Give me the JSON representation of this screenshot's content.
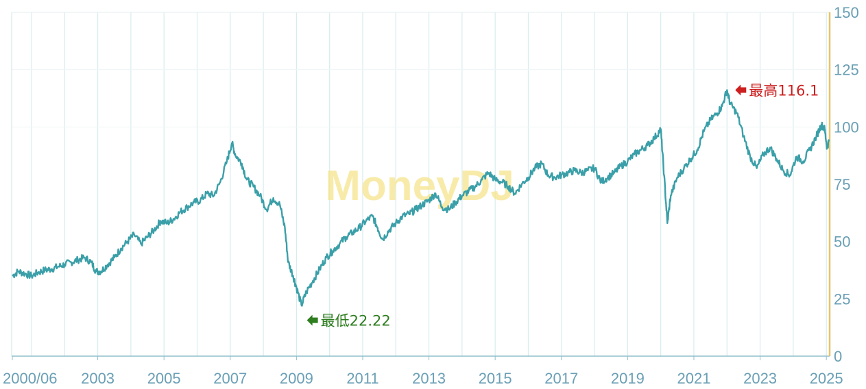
{
  "chart_data": {
    "type": "line",
    "title": "",
    "xlabel": "",
    "ylabel": "",
    "ylim": [
      0,
      150
    ],
    "y_ticks": [
      0,
      25,
      50,
      75,
      100,
      125,
      150
    ],
    "x_range": [
      2000.4,
      2025.1
    ],
    "x_tick_labels": [
      {
        "year": 2000.42,
        "label": "2000/06"
      },
      {
        "year": 2003,
        "label": "2003"
      },
      {
        "year": 2005,
        "label": "2005"
      },
      {
        "year": 2007,
        "label": "2007"
      },
      {
        "year": 2009,
        "label": "2009"
      },
      {
        "year": 2011,
        "label": "2011"
      },
      {
        "year": 2013,
        "label": "2013"
      },
      {
        "year": 2015,
        "label": "2015"
      },
      {
        "year": 2017,
        "label": "2017"
      },
      {
        "year": 2019,
        "label": "2019"
      },
      {
        "year": 2021,
        "label": "2021"
      },
      {
        "year": 2023,
        "label": "2023"
      },
      {
        "year": 2025,
        "label": "2025"
      }
    ],
    "grid": "vertical",
    "line_color": "#3a9fa8",
    "grid_color": "#d7ecef",
    "axis_right_color": "#e8c46a",
    "series": [
      {
        "values": [
          [
            2000.42,
            35
          ],
          [
            2000.6,
            37
          ],
          [
            2000.8,
            36
          ],
          [
            2001.0,
            35
          ],
          [
            2001.2,
            36.5
          ],
          [
            2001.4,
            37.5
          ],
          [
            2001.6,
            38
          ],
          [
            2001.8,
            39
          ],
          [
            2002.0,
            40
          ],
          [
            2002.2,
            41
          ],
          [
            2002.4,
            42
          ],
          [
            2002.6,
            43
          ],
          [
            2002.8,
            41
          ],
          [
            2002.95,
            37
          ],
          [
            2003.1,
            37
          ],
          [
            2003.3,
            40
          ],
          [
            2003.5,
            43
          ],
          [
            2003.7,
            47
          ],
          [
            2003.9,
            50
          ],
          [
            2004.1,
            53
          ],
          [
            2004.3,
            49
          ],
          [
            2004.5,
            52
          ],
          [
            2004.7,
            55
          ],
          [
            2004.9,
            59
          ],
          [
            2005.1,
            58
          ],
          [
            2005.3,
            60
          ],
          [
            2005.5,
            63
          ],
          [
            2005.7,
            65
          ],
          [
            2005.9,
            67
          ],
          [
            2006.1,
            68
          ],
          [
            2006.3,
            71
          ],
          [
            2006.5,
            70
          ],
          [
            2006.7,
            76
          ],
          [
            2006.9,
            85
          ],
          [
            2007.05,
            93
          ],
          [
            2007.15,
            88
          ],
          [
            2007.35,
            84
          ],
          [
            2007.5,
            77
          ],
          [
            2007.7,
            74
          ],
          [
            2007.9,
            70
          ],
          [
            2008.1,
            64
          ],
          [
            2008.3,
            69
          ],
          [
            2008.5,
            66
          ],
          [
            2008.65,
            56
          ],
          [
            2008.75,
            41
          ],
          [
            2008.9,
            35
          ],
          [
            2009.0,
            30
          ],
          [
            2009.15,
            22.22
          ],
          [
            2009.3,
            28
          ],
          [
            2009.5,
            33
          ],
          [
            2009.7,
            38
          ],
          [
            2009.9,
            43
          ],
          [
            2010.1,
            46
          ],
          [
            2010.3,
            49
          ],
          [
            2010.5,
            52
          ],
          [
            2010.7,
            54
          ],
          [
            2010.9,
            56
          ],
          [
            2011.1,
            59
          ],
          [
            2011.3,
            61
          ],
          [
            2011.45,
            56
          ],
          [
            2011.6,
            51
          ],
          [
            2011.8,
            55
          ],
          [
            2012.0,
            58
          ],
          [
            2012.2,
            61
          ],
          [
            2012.4,
            62
          ],
          [
            2012.6,
            64
          ],
          [
            2012.8,
            66
          ],
          [
            2013.0,
            68
          ],
          [
            2013.2,
            71
          ],
          [
            2013.4,
            65
          ],
          [
            2013.6,
            64
          ],
          [
            2013.8,
            67
          ],
          [
            2014.0,
            70
          ],
          [
            2014.2,
            72
          ],
          [
            2014.4,
            74
          ],
          [
            2014.6,
            77
          ],
          [
            2014.8,
            80
          ],
          [
            2015.0,
            77
          ],
          [
            2015.2,
            76
          ],
          [
            2015.4,
            74
          ],
          [
            2015.6,
            71
          ],
          [
            2015.8,
            75
          ],
          [
            2016.0,
            78
          ],
          [
            2016.2,
            82
          ],
          [
            2016.4,
            84
          ],
          [
            2016.6,
            79
          ],
          [
            2016.8,
            78
          ],
          [
            2017.0,
            79
          ],
          [
            2017.2,
            80
          ],
          [
            2017.4,
            81
          ],
          [
            2017.6,
            80
          ],
          [
            2017.8,
            81
          ],
          [
            2018.0,
            82
          ],
          [
            2018.2,
            76
          ],
          [
            2018.4,
            78
          ],
          [
            2018.6,
            80
          ],
          [
            2018.8,
            83
          ],
          [
            2019.0,
            85
          ],
          [
            2019.2,
            88
          ],
          [
            2019.4,
            90
          ],
          [
            2019.6,
            92
          ],
          [
            2019.8,
            95
          ],
          [
            2020.0,
            99
          ],
          [
            2020.1,
            79
          ],
          [
            2020.2,
            58
          ],
          [
            2020.3,
            70
          ],
          [
            2020.5,
            78
          ],
          [
            2020.7,
            82
          ],
          [
            2020.9,
            86
          ],
          [
            2021.1,
            90
          ],
          [
            2021.3,
            98
          ],
          [
            2021.5,
            103
          ],
          [
            2021.7,
            106
          ],
          [
            2021.85,
            109
          ],
          [
            2022.0,
            116.1
          ],
          [
            2022.1,
            110
          ],
          [
            2022.3,
            106
          ],
          [
            2022.5,
            96
          ],
          [
            2022.7,
            87
          ],
          [
            2022.9,
            82
          ],
          [
            2023.1,
            88
          ],
          [
            2023.3,
            91
          ],
          [
            2023.5,
            86
          ],
          [
            2023.7,
            81
          ],
          [
            2023.9,
            79
          ],
          [
            2024.1,
            87
          ],
          [
            2024.3,
            85
          ],
          [
            2024.5,
            90
          ],
          [
            2024.7,
            96
          ],
          [
            2024.85,
            101
          ],
          [
            2024.95,
            99
          ],
          [
            2025.02,
            91
          ],
          [
            2025.08,
            94
          ]
        ]
      }
    ],
    "annotations": [
      {
        "id": "high",
        "label": "最高116.1",
        "x": 2022.0,
        "y": 116.1,
        "color": "#cc1f1f"
      },
      {
        "id": "low",
        "label": "最低22.22",
        "x": 2009.15,
        "y": 22.22,
        "color": "#2e7d1f"
      }
    ],
    "watermark": "MoneyDJ"
  }
}
